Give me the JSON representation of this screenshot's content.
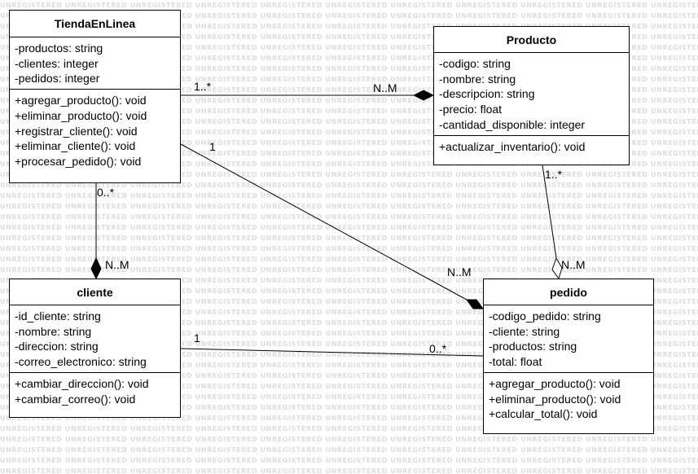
{
  "watermark_text": "UNREGISTERED",
  "classes": {
    "tienda": {
      "name": "TiendaEnLinea",
      "attributes": [
        "-productos: string",
        "-clientes: integer",
        "-pedidos: integer"
      ],
      "methods": [
        "+agregar_producto(): void",
        "+eliminar_producto(): void",
        "+registrar_cliente(): void",
        "+eliminar_cliente(): void",
        "+procesar_pedido(): void"
      ]
    },
    "producto": {
      "name": "Producto",
      "attributes": [
        "-codigo: string",
        "-nombre: string",
        "-descripcion: string",
        "-precio: float",
        "-cantidad_disponible: integer"
      ],
      "methods": [
        "+actualizar_inventario(): void"
      ]
    },
    "cliente": {
      "name": "cliente",
      "attributes": [
        "-id_cliente: string",
        "-nombre: string",
        "-direccion: string",
        "-correo_electronico: string"
      ],
      "methods": [
        "+cambiar_direccion(): void",
        "+cambiar_correo(): void"
      ]
    },
    "pedido": {
      "name": "pedido",
      "attributes": [
        "-codigo_pedido: string",
        "-cliente: string",
        "-productos: string",
        "-total: float"
      ],
      "methods": [
        "+agregar_producto(): void",
        "+eliminar_producto(): void",
        "+calcular_total(): void"
      ]
    }
  },
  "multiplicities": {
    "tienda_producto_source": "1..*",
    "tienda_producto_target": "N..M",
    "tienda_pedido_source": "1",
    "tienda_pedido_target": "N..M",
    "tienda_cliente_source": "0..*",
    "tienda_cliente_target": "N..M",
    "producto_pedido_source": "1..*",
    "producto_pedido_target": "N..M",
    "cliente_pedido_source": "1",
    "cliente_pedido_target": "0..*"
  }
}
